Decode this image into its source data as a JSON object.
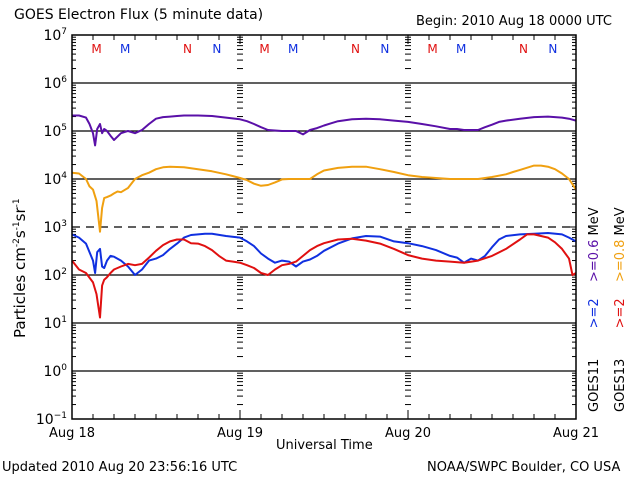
{
  "header": {
    "title": "GOES Electron Flux (5 minute data)",
    "begin": "Begin: 2010 Aug 18 0000 UTC"
  },
  "footer": {
    "updated": "Updated 2010 Aug 20 23:56:16 UTC",
    "credit": "NOAA/SWPC Boulder, CO USA"
  },
  "colors": {
    "goes11_gt2": "#1030e0",
    "goes11_gt06": "#5a10a8",
    "goes13_gt2": "#e01010",
    "goes13_gt08": "#f0a010",
    "marker_red": "#e01010",
    "marker_blue": "#1030e0"
  },
  "legend": {
    "goes11": {
      "sat": "GOES11",
      "e1": ">=2",
      "e2": ">=0.6",
      "unit": "MeV"
    },
    "goes13": {
      "sat": "GOES13",
      "e1": ">=2",
      "e2": ">=0.8",
      "unit": "MeV"
    }
  },
  "chart_data": {
    "type": "line",
    "title": "GOES Electron Flux (5 minute data)",
    "xlabel": "Universal Time",
    "ylabel": "Particles cm-2 s-1 sr-1",
    "ylabel_parts": {
      "base": "Particles cm",
      "sup1": "-2",
      "s": "s",
      "sup2": "-1",
      "sr": "sr",
      "sup3": "-1"
    },
    "yscale": "log",
    "ylim": [
      0.1,
      10000000
    ],
    "xlim_hours": [
      0,
      72
    ],
    "x_ticks": [
      {
        "hour": 0,
        "label": "Aug 18"
      },
      {
        "hour": 24,
        "label": "Aug 19"
      },
      {
        "hour": 48,
        "label": "Aug 20"
      },
      {
        "hour": 72,
        "label": "Aug 21"
      }
    ],
    "y_ticks": [
      {
        "exp": 7,
        "label_base": "10",
        "label_exp": "7"
      },
      {
        "exp": 6,
        "label_base": "10",
        "label_exp": "6"
      },
      {
        "exp": 5,
        "label_base": "10",
        "label_exp": "5"
      },
      {
        "exp": 4,
        "label_base": "10",
        "label_exp": "4"
      },
      {
        "exp": 3,
        "label_base": "10",
        "label_exp": "3"
      },
      {
        "exp": 2,
        "label_base": "10",
        "label_exp": "2"
      },
      {
        "exp": 1,
        "label_base": "10",
        "label_exp": "1"
      },
      {
        "exp": 0,
        "label_base": "10",
        "label_exp": "0"
      },
      {
        "exp": -1,
        "label_base": "10",
        "label_exp": "-1"
      }
    ],
    "solid_gridlines_exp": [
      6,
      5,
      4,
      2,
      1,
      0
    ],
    "dashed_gridlines_exp": [
      3
    ],
    "grid": true,
    "legend_placement": "right-vertical",
    "midnight_markers": [
      {
        "hour": 3.5,
        "label": "M",
        "satellite": "GOES13"
      },
      {
        "hour": 7.6,
        "label": "M",
        "satellite": "GOES11"
      },
      {
        "hour": 16.5,
        "label": "N",
        "satellite": "GOES13"
      },
      {
        "hour": 20.7,
        "label": "N",
        "satellite": "GOES11"
      },
      {
        "hour": 27.5,
        "label": "M",
        "satellite": "GOES13"
      },
      {
        "hour": 31.6,
        "label": "M",
        "satellite": "GOES11"
      },
      {
        "hour": 40.5,
        "label": "N",
        "satellite": "GOES13"
      },
      {
        "hour": 44.7,
        "label": "N",
        "satellite": "GOES11"
      },
      {
        "hour": 51.5,
        "label": "M",
        "satellite": "GOES13"
      },
      {
        "hour": 55.6,
        "label": "M",
        "satellite": "GOES11"
      },
      {
        "hour": 64.5,
        "label": "N",
        "satellite": "GOES13"
      },
      {
        "hour": 68.7,
        "label": "N",
        "satellite": "GOES11"
      }
    ],
    "series": [
      {
        "name": "GOES11 >=0.6 MeV",
        "color_key": "goes11_gt06",
        "x_hours": [
          0,
          1,
          2,
          2.5,
          3,
          3.3,
          3.6,
          4,
          4.3,
          4.6,
          5,
          5.5,
          6,
          7,
          8,
          9,
          10,
          11,
          12,
          13,
          14,
          15,
          16,
          18,
          20,
          22,
          24,
          25,
          26,
          27,
          28,
          30,
          32,
          33,
          34,
          35,
          36,
          37,
          38,
          40,
          42,
          44,
          46,
          48,
          50,
          52,
          54,
          55,
          56,
          57,
          58,
          59,
          60,
          61,
          62,
          64,
          66,
          68,
          70,
          71,
          72
        ],
        "values": [
          210000.0,
          210000.0,
          190000.0,
          140000.0,
          90000.0,
          50000.0,
          110000.0,
          140000.0,
          90000.0,
          110000.0,
          100000.0,
          80000.0,
          65000.0,
          90000.0,
          100000.0,
          90000.0,
          105000.0,
          140000.0,
          180000.0,
          195000.0,
          200000.0,
          205000.0,
          210000.0,
          210000.0,
          205000.0,
          190000.0,
          175000.0,
          160000.0,
          140000.0,
          120000.0,
          105000.0,
          100000.0,
          100000.0,
          85000.0,
          105000.0,
          115000.0,
          130000.0,
          145000.0,
          160000.0,
          175000.0,
          180000.0,
          175000.0,
          165000.0,
          155000.0,
          140000.0,
          125000.0,
          110000.0,
          110000.0,
          105000.0,
          105000.0,
          105000.0,
          120000.0,
          135000.0,
          155000.0,
          165000.0,
          180000.0,
          195000.0,
          200000.0,
          190000.0,
          180000.0,
          165000.0
        ]
      },
      {
        "name": "GOES13 >=0.8 MeV",
        "color_key": "goes13_gt08",
        "x_hours": [
          0,
          1,
          2,
          2.5,
          3,
          3.5,
          4,
          4.3,
          4.6,
          5,
          5.5,
          6,
          6.5,
          7,
          8,
          9,
          10,
          11,
          12,
          13,
          14,
          16,
          18,
          20,
          22,
          23,
          24,
          25,
          26,
          27,
          28,
          29,
          30,
          31,
          32,
          33,
          34,
          35,
          36,
          38,
          40,
          42,
          44,
          46,
          48,
          50,
          52,
          54,
          56,
          58,
          60,
          62,
          63,
          64,
          66,
          67,
          68,
          69,
          70,
          71,
          72
        ],
        "values": [
          13500.0,
          13000.0,
          10000.0,
          7000.0,
          6000.0,
          3500.0,
          800.0,
          2500.0,
          4000.0,
          4200.0,
          4500.0,
          5000.0,
          5500.0,
          5300.0,
          6500.0,
          10000.0,
          12000.0,
          13500.0,
          16000.0,
          17500.0,
          18000.0,
          17500.0,
          16000.0,
          14500.0,
          12500.0,
          11500.0,
          10500.0,
          9500.0,
          8000.0,
          7200.0,
          7500.0,
          8500.0,
          9800.0,
          10000.0,
          10000.0,
          10000.0,
          10000.0,
          12500.0,
          15000.0,
          17000.0,
          18000.0,
          18000.0,
          16000.0,
          14000.0,
          12000.0,
          11000.0,
          10500.0,
          10000.0,
          10000.0,
          10000.0,
          11000.0,
          12500.0,
          14000.0,
          15500.0,
          19000.0,
          19000.0,
          18000.0,
          16000.0,
          13000.0,
          10000.0,
          6000.0
        ]
      },
      {
        "name": "GOES11 >=2 MeV",
        "color_key": "goes11_gt2",
        "x_hours": [
          0,
          1,
          2,
          2.5,
          3,
          3.3,
          3.6,
          4,
          4.3,
          4.6,
          5,
          5.5,
          6,
          7,
          8,
          9,
          10,
          11,
          12,
          13,
          14,
          15,
          16,
          17,
          18,
          19,
          20,
          22,
          24,
          25,
          26,
          27,
          28,
          29,
          30,
          31,
          32,
          33,
          34,
          35,
          36,
          38,
          40,
          42,
          44,
          46,
          48,
          50,
          52,
          54,
          55,
          56,
          57,
          58,
          59,
          60,
          61,
          62,
          64,
          66,
          68,
          70,
          71,
          72
        ],
        "values": [
          700.0,
          600.0,
          450.0,
          300.0,
          200.0,
          110.0,
          300.0,
          350.0,
          150.0,
          140.0,
          200.0,
          250.0,
          240.0,
          200.0,
          150.0,
          100.0,
          130.0,
          200.0,
          220.0,
          260.0,
          350.0,
          450.0,
          600.0,
          680.0,
          700.0,
          720.0,
          720.0,
          650.0,
          600.0,
          500.0,
          400.0,
          280.0,
          220.0,
          180.0,
          200.0,
          190.0,
          150.0,
          190.0,
          210.0,
          250.0,
          320.0,
          450.0,
          580.0,
          650.0,
          630.0,
          500.0,
          460.0,
          400.0,
          330.0,
          250.0,
          230.0,
          180.0,
          220.0,
          200.0,
          250.0,
          380.0,
          550.0,
          650.0,
          700.0,
          720.0,
          750.0,
          700.0,
          600.0,
          500.0
        ]
      },
      {
        "name": "GOES13 >=2 MeV",
        "color_key": "goes13_gt2",
        "x_hours": [
          0,
          1,
          2,
          3,
          3.5,
          4,
          4.3,
          4.6,
          5,
          5.5,
          6,
          7,
          8,
          9,
          10,
          11,
          12,
          13,
          14,
          15,
          16,
          17,
          18,
          19,
          20,
          21,
          22,
          23,
          24,
          25,
          26,
          27,
          28,
          29,
          30,
          31,
          32,
          33,
          34,
          35,
          36,
          38,
          40,
          42,
          44,
          46,
          48,
          50,
          52,
          54,
          56,
          58,
          60,
          62,
          64,
          65,
          66,
          67,
          68,
          69,
          70,
          71,
          71.5,
          72
        ],
        "values": [
          200.0,
          130.0,
          110.0,
          70.0,
          40.0,
          13.0,
          60.0,
          80.0,
          90.0,
          110.0,
          130.0,
          150.0,
          170.0,
          160.0,
          170.0,
          230.0,
          320.0,
          420.0,
          500.0,
          550.0,
          550.0,
          460.0,
          450.0,
          400.0,
          330.0,
          250.0,
          200.0,
          190.0,
          180.0,
          160.0,
          140.0,
          110.0,
          100.0,
          130.0,
          160.0,
          170.0,
          190.0,
          250.0,
          330.0,
          400.0,
          460.0,
          550.0,
          570.0,
          520.0,
          450.0,
          350.0,
          260.0,
          220.0,
          200.0,
          190.0,
          180.0,
          200.0,
          250.0,
          350.0,
          550.0,
          700.0,
          700.0,
          650.0,
          600.0,
          480.0,
          350.0,
          220.0,
          100.0,
          110.0
        ]
      }
    ]
  }
}
